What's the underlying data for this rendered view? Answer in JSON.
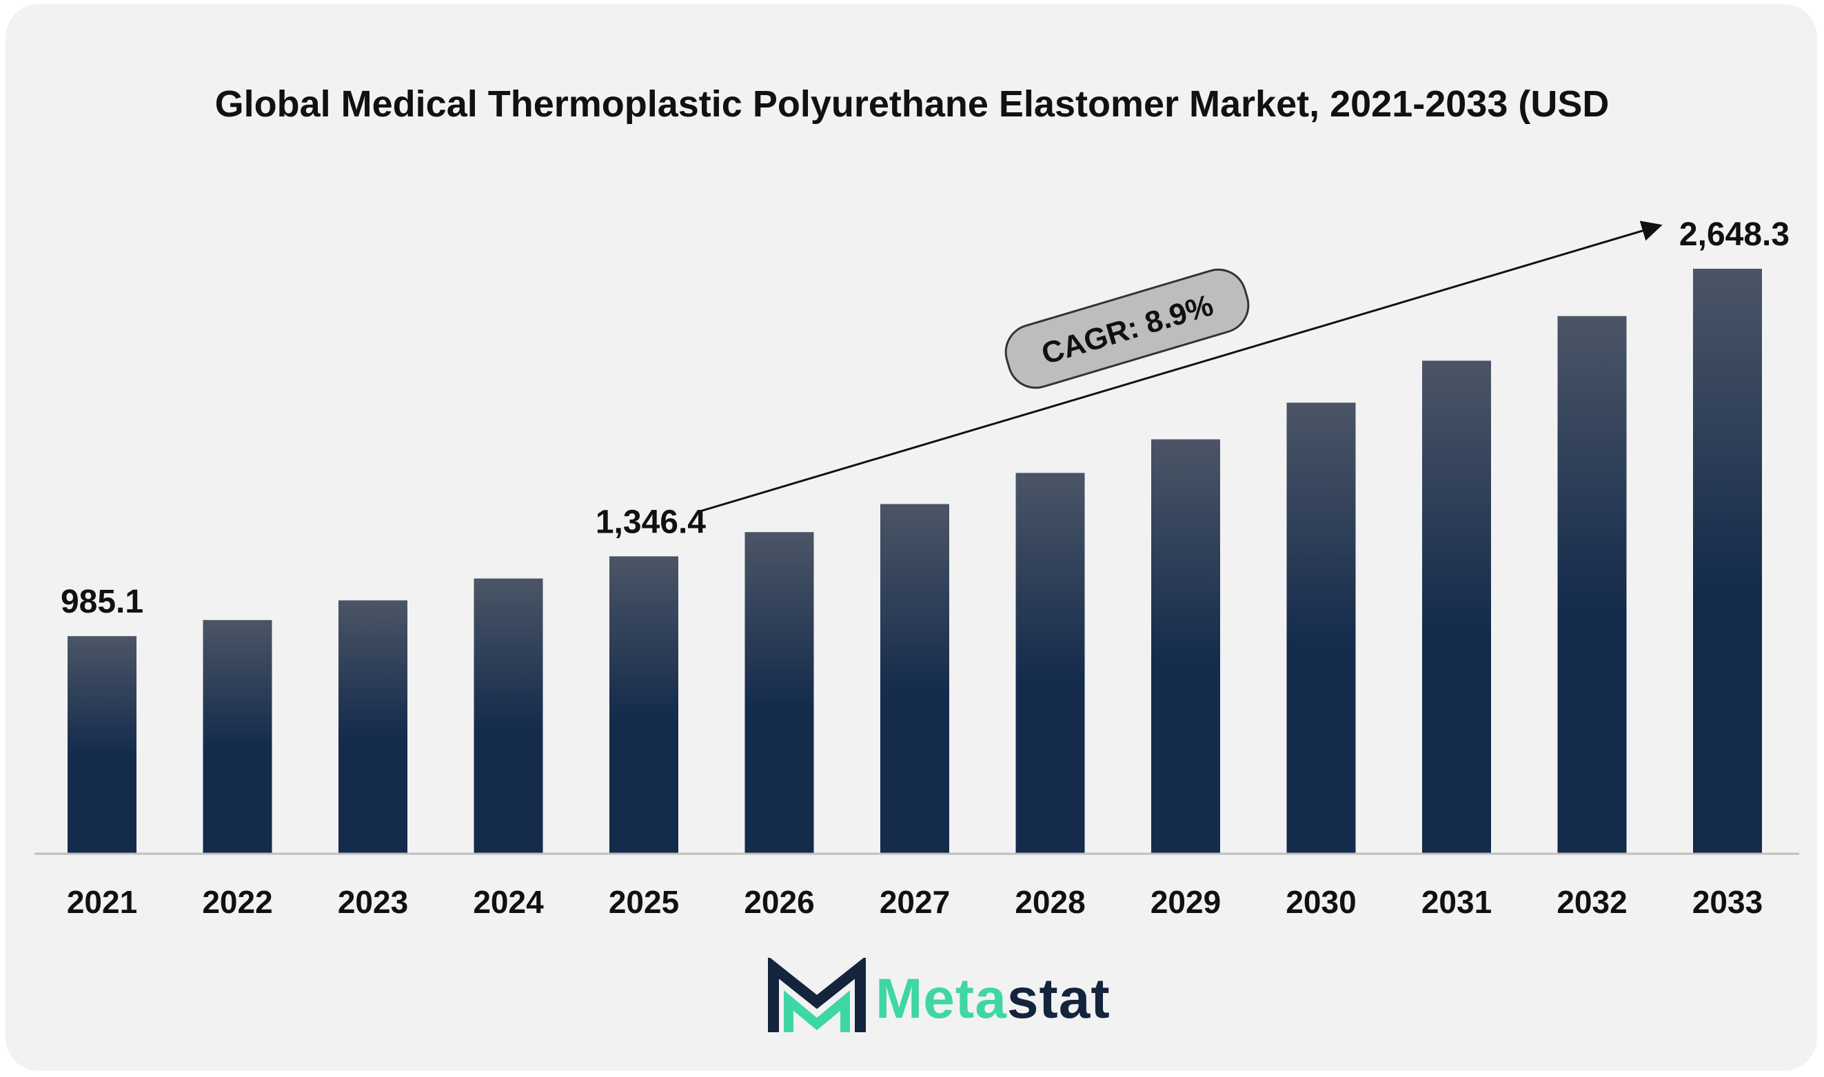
{
  "chart_data": {
    "type": "bar",
    "title": "Global Medical Thermoplastic Polyurethane Elastomer Market, 2021-2033 (USD",
    "categories": [
      "2021",
      "2022",
      "2023",
      "2024",
      "2025",
      "2026",
      "2027",
      "2028",
      "2029",
      "2030",
      "2031",
      "2032",
      "2033"
    ],
    "values": [
      985.1,
      1058.0,
      1147.0,
      1246.0,
      1346.4,
      1456.0,
      1583.0,
      1724.0,
      1876.0,
      2042.0,
      2232.0,
      2434.0,
      2648.3
    ],
    "data_labels": [
      {
        "category": "2021",
        "text": "985.1"
      },
      {
        "category": "2025",
        "text": "1,346.4"
      },
      {
        "category": "2033",
        "text": "2,648.3"
      }
    ],
    "annotation": {
      "text": "CAGR: 8.9%",
      "from": "2025",
      "to": "2033"
    },
    "ylim": [
      0,
      2648.3
    ],
    "grid": false,
    "legend": "none",
    "colors": {
      "bar_top": "#4b5566",
      "bar_bottom": "#142b4c",
      "axis": "#bfbfbf",
      "text": "#111111",
      "pill_fill": "#bdbdbd",
      "pill_stroke": "#333333"
    }
  },
  "brand": {
    "name_part1": "Meta",
    "name_part2": "stat",
    "logo_icon": "metastat-m-icon"
  }
}
